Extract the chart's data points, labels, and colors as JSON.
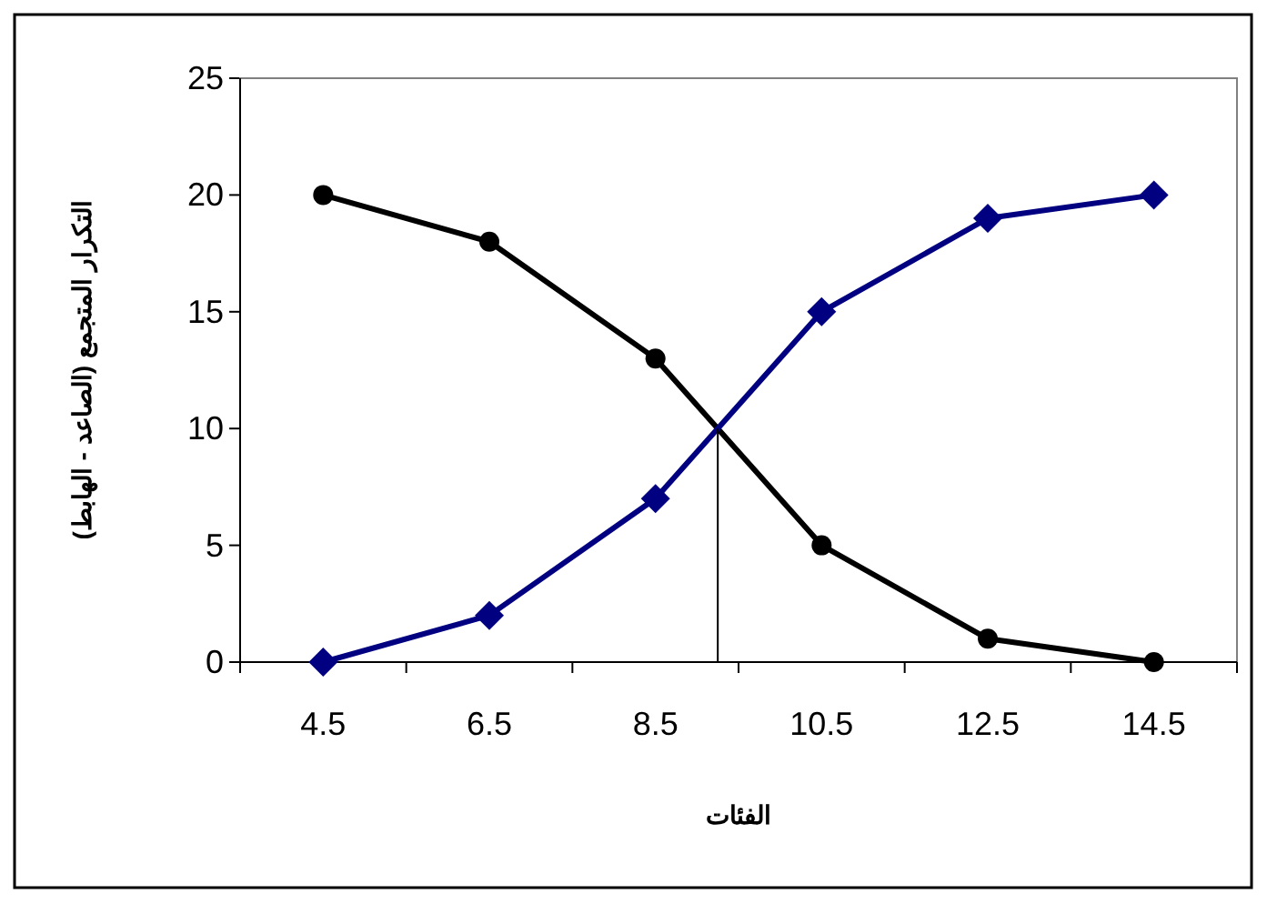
{
  "chart_data": {
    "type": "line",
    "xlabel": "الفئات",
    "ylabel": "التكرار المتجمع (الصاعد - الهابط)",
    "x": [
      4.5,
      6.5,
      8.5,
      10.5,
      12.5,
      14.5
    ],
    "xlim": [
      3.5,
      15.5
    ],
    "xticks": [
      {
        "value": 3.5,
        "label": null
      },
      4.5,
      {
        "value": 5.5,
        "label": null
      },
      6.5,
      {
        "value": 7.5,
        "label": null
      },
      8.5,
      {
        "value": 9.5,
        "label": null
      },
      10.5,
      {
        "value": 11.5,
        "label": null
      },
      12.5,
      {
        "value": 13.5,
        "label": null
      },
      14.5,
      {
        "value": 15.5,
        "label": null
      }
    ],
    "ylim": [
      0,
      25
    ],
    "yticks": [
      0,
      5,
      10,
      15,
      20,
      25
    ],
    "grid": false,
    "series": [
      {
        "color": "#000000",
        "marker": "circle",
        "values": [
          20,
          18,
          13,
          5,
          1,
          0
        ]
      },
      {
        "color": "#000080",
        "marker": "diamond",
        "values": [
          0,
          2,
          7,
          15,
          19,
          20
        ]
      },
      {
        "color": "#000000",
        "marker": "none",
        "x": [
          9.25,
          9.25
        ],
        "values": [
          0,
          10
        ]
      }
    ]
  }
}
